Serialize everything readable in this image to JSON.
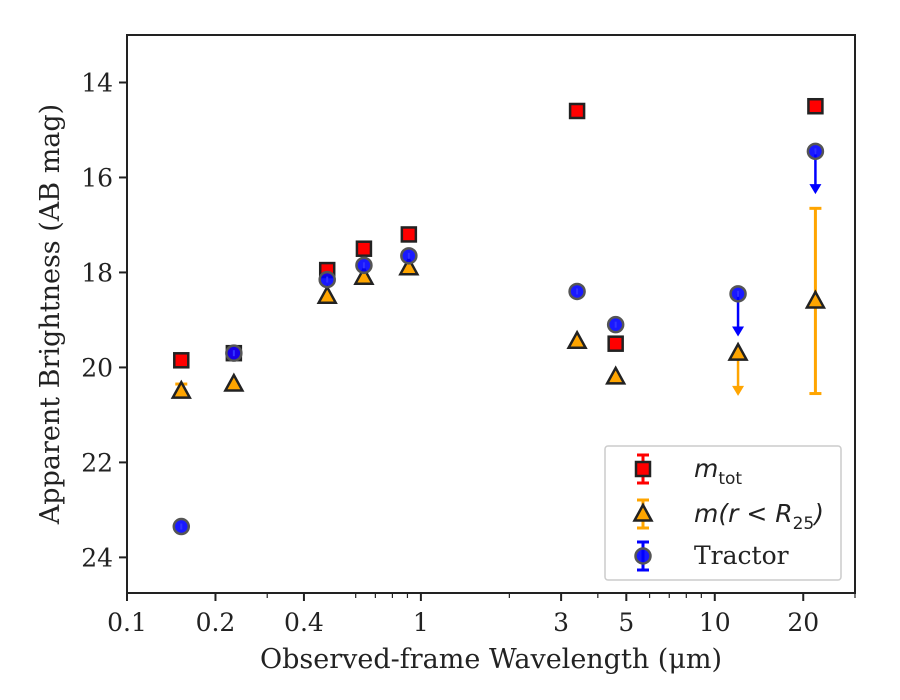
{
  "chart_data": {
    "type": "scatter",
    "xlabel": "Observed-frame Wavelength (μm)",
    "ylabel": "Apparent Brightness (AB mag)",
    "xscale": "log",
    "xlim": [
      0.1,
      30
    ],
    "ylim": [
      24.75,
      13.0
    ],
    "y_inverted": true,
    "x_ticks": [
      0.1,
      0.2,
      0.4,
      1,
      3,
      5,
      10,
      20
    ],
    "x_tick_labels": [
      "0.1",
      "0.2",
      "0.4",
      "1",
      "3",
      "5",
      "10",
      "20"
    ],
    "y_ticks": [
      14,
      16,
      18,
      20,
      22,
      24
    ],
    "y_tick_labels": [
      "14",
      "16",
      "18",
      "20",
      "22",
      "24"
    ],
    "grid": false,
    "legend_position": "bottom-right",
    "series": [
      {
        "name": "m_tot",
        "legend_label": {
          "main": "m",
          "sub": "tot"
        },
        "marker": "square",
        "fill": "#ff0000",
        "edge": "#222222",
        "errcolor": "#ff0000",
        "points": [
          {
            "x": 0.153,
            "y": 19.85
          },
          {
            "x": 0.231,
            "y": 19.7
          },
          {
            "x": 0.48,
            "y": 17.95
          },
          {
            "x": 0.64,
            "y": 17.5
          },
          {
            "x": 0.91,
            "y": 17.2
          },
          {
            "x": 3.4,
            "y": 14.6
          },
          {
            "x": 4.6,
            "y": 19.5
          },
          {
            "x": 22.0,
            "y": 14.5
          }
        ]
      },
      {
        "name": "m(r<R_25)",
        "legend_label": {
          "main": "m(r < R",
          "sub": "25",
          "tail": ")"
        },
        "marker": "triangle",
        "fill": "#ffa500",
        "edge": "#222222",
        "errcolor": "#ffa500",
        "points": [
          {
            "x": 0.153,
            "y": 20.5,
            "yerr": 0.15
          },
          {
            "x": 0.231,
            "y": 20.35
          },
          {
            "x": 0.48,
            "y": 18.5
          },
          {
            "x": 0.64,
            "y": 18.1
          },
          {
            "x": 0.91,
            "y": 17.9
          },
          {
            "x": 3.4,
            "y": 19.45
          },
          {
            "x": 4.6,
            "y": 20.2
          },
          {
            "x": 12.0,
            "y": 19.7,
            "upper_limit": true,
            "arrow_to": 20.6
          },
          {
            "x": 22.0,
            "y": 18.6,
            "err_low": 16.65,
            "err_high": 20.55
          }
        ]
      },
      {
        "name": "Tractor",
        "legend_label": {
          "main": "Tractor"
        },
        "marker": "circle",
        "fill": "#0000ff",
        "edge": "#555555",
        "errcolor": "#0000ff",
        "points": [
          {
            "x": 0.153,
            "y": 23.35
          },
          {
            "x": 0.231,
            "y": 19.7
          },
          {
            "x": 0.48,
            "y": 18.15
          },
          {
            "x": 0.64,
            "y": 17.85
          },
          {
            "x": 0.91,
            "y": 17.65
          },
          {
            "x": 3.4,
            "y": 18.4
          },
          {
            "x": 4.6,
            "y": 19.1
          },
          {
            "x": 12.0,
            "y": 18.45,
            "upper_limit": true,
            "arrow_to": 19.35
          },
          {
            "x": 22.0,
            "y": 15.45,
            "upper_limit": true,
            "arrow_to": 16.35
          }
        ]
      }
    ]
  }
}
